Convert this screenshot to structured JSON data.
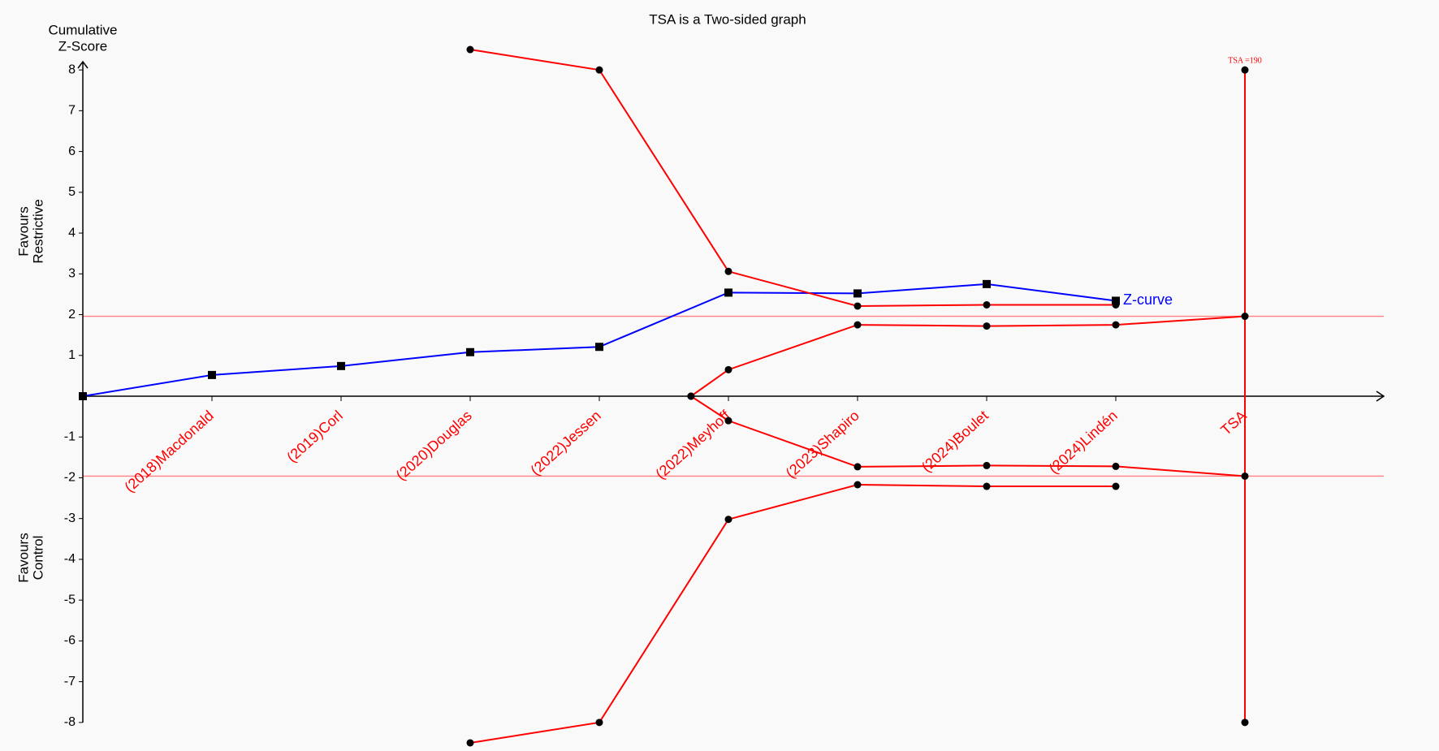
{
  "chart_data": {
    "type": "tsa",
    "title": "TSA is a Two-sided graph",
    "y_axis_title": [
      "Cumulative",
      "Z-Score"
    ],
    "upper_region_label": [
      "Favours",
      "Restrictive"
    ],
    "lower_region_label": [
      "Favours",
      "Control"
    ],
    "categories": [
      null,
      "(2018)Macdonald",
      "(2019)Corl",
      "(2020)Douglas",
      "(2022)Jessen",
      "(2022)Meyhoff",
      "(2023)Shapiro",
      "(2024)Boulet",
      "(2024)Lindén",
      "TSA"
    ],
    "category_color": "#ff0000",
    "ylim": [
      -8.6,
      8.6
    ],
    "yticks": [
      -8,
      -7,
      -6,
      -5,
      -4,
      -3,
      -2,
      -1,
      1,
      2,
      3,
      4,
      5,
      6,
      7,
      8
    ],
    "conventional_boundaries": {
      "values": [
        1.96,
        -1.96
      ],
      "color": "#ff8080"
    },
    "series": [
      {
        "name": "Z-curve",
        "color": "#0000ff",
        "marker": "square",
        "values": [
          0,
          0.52,
          0.74,
          1.08,
          1.21,
          2.54,
          2.52,
          2.75,
          2.34,
          null
        ]
      },
      {
        "color": "#ff0000",
        "marker": "circle",
        "values": [
          null,
          null,
          null,
          8.5,
          8,
          3.06,
          2.21,
          2.24,
          2.24,
          null
        ]
      },
      {
        "color": "#ff0000",
        "marker": "circle",
        "values": [
          null,
          null,
          null,
          -8.5,
          -8,
          -3.02,
          -2.17,
          -2.21,
          -2.21,
          null
        ]
      },
      {
        "color": "#ff0000",
        "marker": "circle",
        "x": [
          4.71,
          5,
          6,
          7,
          8,
          9
        ],
        "values": [
          0,
          0.65,
          1.75,
          1.72,
          1.75,
          1.96
        ]
      },
      {
        "color": "#ff0000",
        "marker": "circle",
        "x": [
          4.71,
          5,
          6,
          7,
          8,
          9
        ],
        "values": [
          0,
          -0.6,
          -1.73,
          -1.7,
          -1.72,
          -1.96
        ]
      }
    ],
    "tsa_line": {
      "label": "TSA =190",
      "color": "#ff0000",
      "values": [
        8,
        -8
      ]
    }
  }
}
